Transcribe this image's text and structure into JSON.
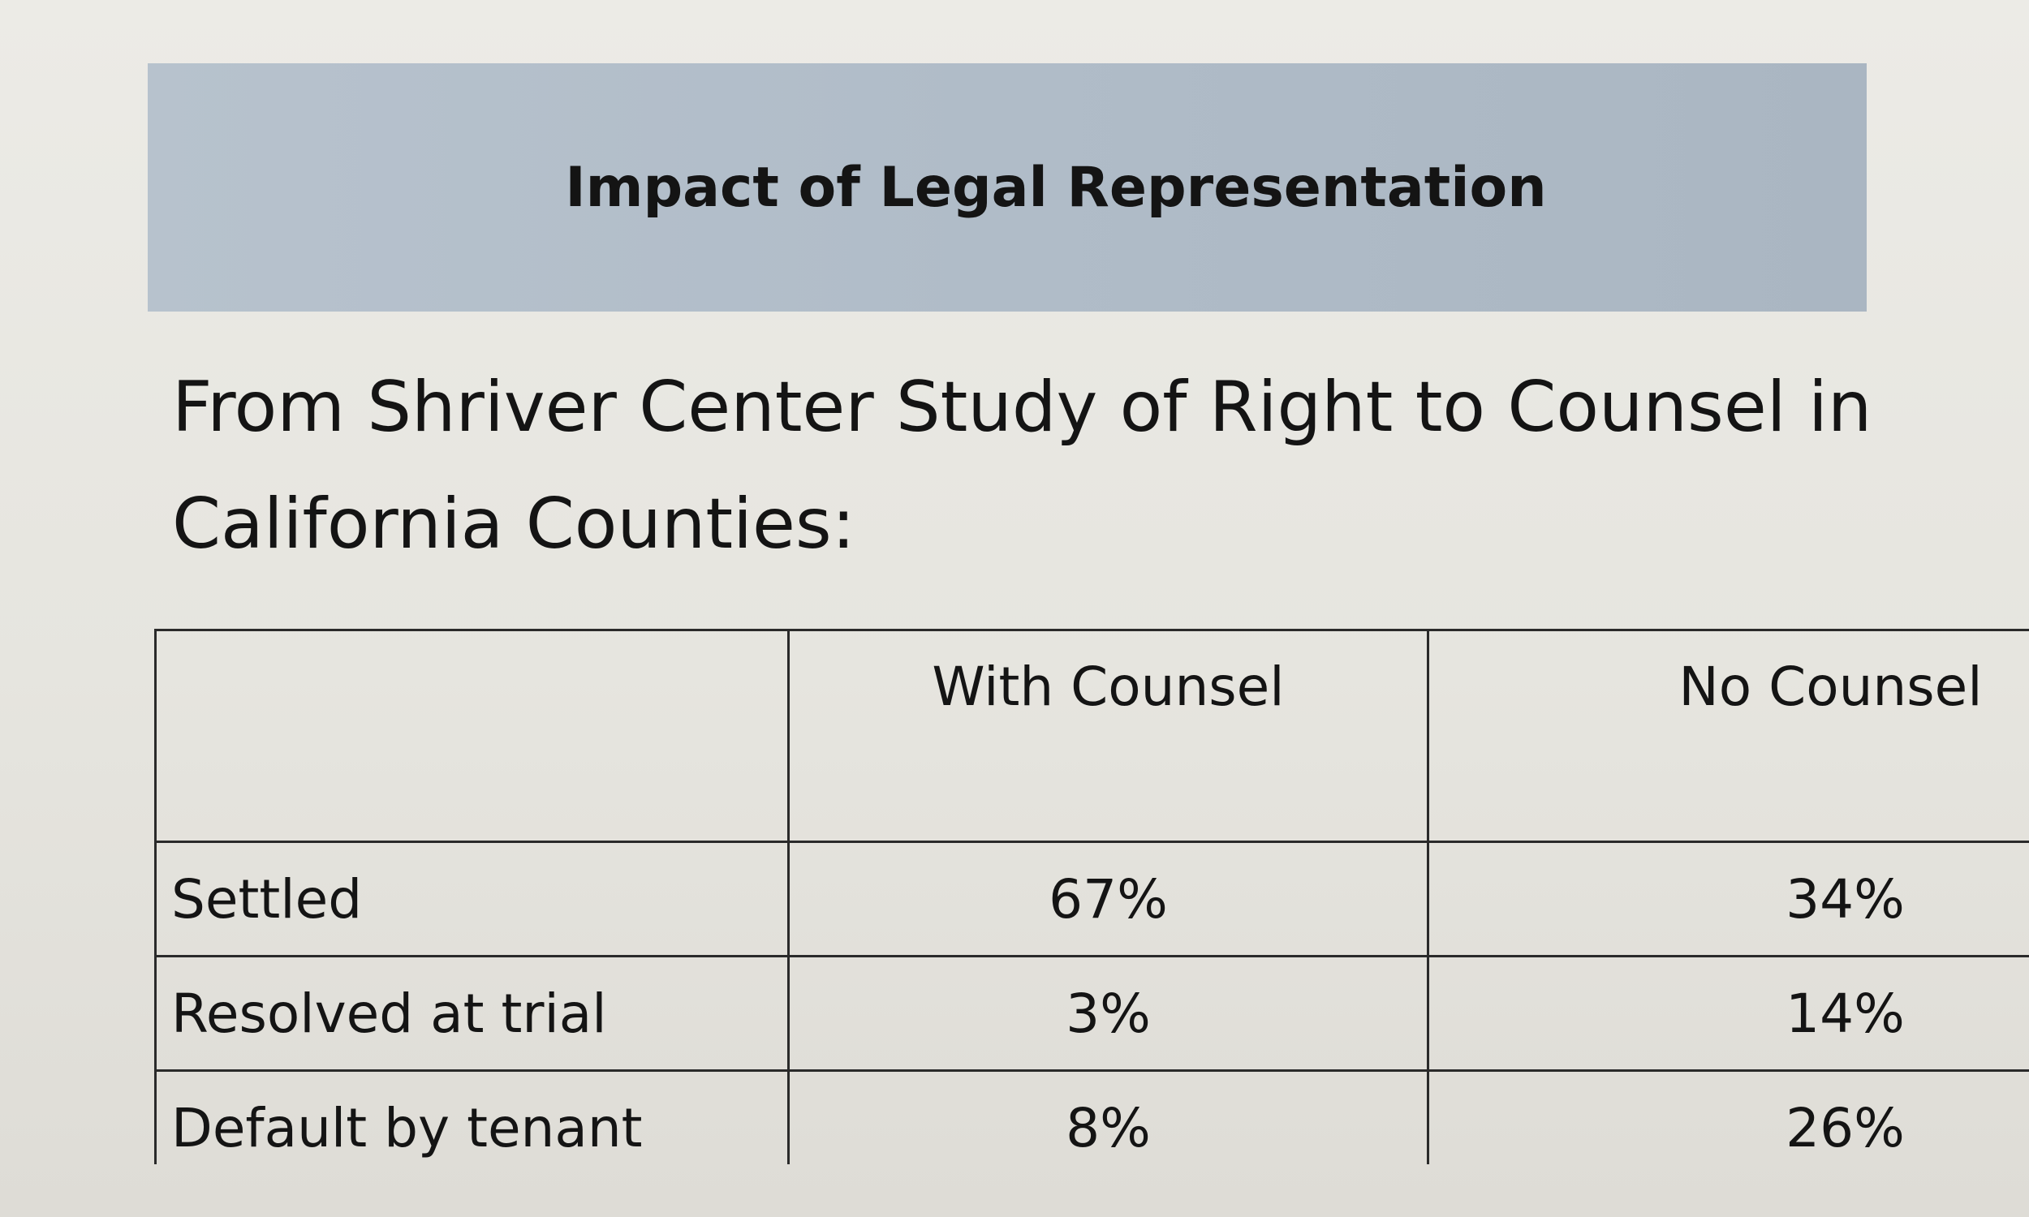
{
  "banner": {
    "title": "Impact of Legal Representation"
  },
  "intro": {
    "text": "From Shriver Center Study of Right to Counsel in California Counties:"
  },
  "table": {
    "columns": [
      "",
      "With Counsel",
      "No Counsel"
    ],
    "rows": [
      {
        "label": "Settled",
        "with_counsel": "67%",
        "no_counsel": "34%"
      },
      {
        "label": "Resolved at trial",
        "with_counsel": "3%",
        "no_counsel": "14%"
      },
      {
        "label": "Default by tenant",
        "with_counsel": "8%",
        "no_counsel": "26%"
      }
    ]
  },
  "colors": {
    "banner_background": "#b0bcc8",
    "paper": "#e8e7e1",
    "text": "#141414",
    "table_border": "#2a2a2a"
  }
}
